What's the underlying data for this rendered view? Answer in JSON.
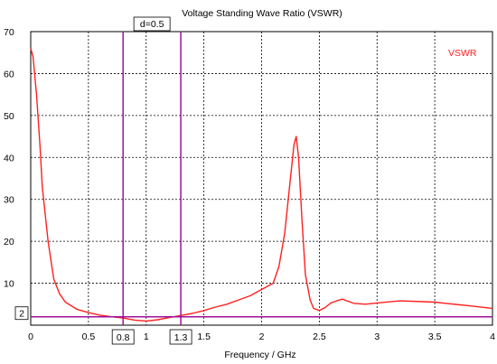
{
  "chart_data": {
    "type": "line",
    "title": "Voltage Standing Wave Ratio (VSWR)",
    "xlabel": "Frequency / GHz",
    "ylabel": "",
    "xlim": [
      0,
      4
    ],
    "ylim": [
      0,
      70
    ],
    "xticks": [
      "0",
      "0.5",
      "1",
      "1.5",
      "2",
      "2.5",
      "3",
      "3.5",
      "4"
    ],
    "yticks": [
      "10",
      "20",
      "30",
      "40",
      "50",
      "60",
      "70"
    ],
    "grid": true,
    "legend_position": "top-right",
    "colors": {
      "series": "#ff2020",
      "markers": "#a0129a",
      "grid": "#000000"
    },
    "series": [
      {
        "name": "VSWR",
        "x": [
          0,
          0.02,
          0.05,
          0.08,
          0.1,
          0.15,
          0.2,
          0.25,
          0.3,
          0.4,
          0.5,
          0.6,
          0.7,
          0.8,
          0.9,
          1.0,
          1.1,
          1.2,
          1.3,
          1.4,
          1.5,
          1.6,
          1.7,
          1.8,
          1.9,
          2.0,
          2.1,
          2.15,
          2.2,
          2.25,
          2.28,
          2.3,
          2.32,
          2.35,
          2.38,
          2.42,
          2.45,
          2.5,
          2.55,
          2.6,
          2.65,
          2.7,
          2.8,
          2.9,
          3.0,
          3.2,
          3.4,
          3.5,
          3.6,
          3.8,
          4.0
        ],
        "y": [
          66,
          64,
          55,
          43,
          33,
          20,
          11,
          7.5,
          5.5,
          3.8,
          3,
          2.4,
          2,
          1.7,
          1.2,
          1.0,
          1.3,
          1.8,
          2.3,
          2.8,
          3.5,
          4.3,
          5,
          6,
          7,
          8.5,
          10,
          14,
          22,
          35,
          43,
          45,
          40,
          25,
          12,
          6,
          4,
          3.5,
          4.2,
          5.3,
          5.8,
          6.2,
          5.2,
          5.0,
          5.3,
          5.8,
          5.6,
          5.5,
          5.2,
          4.6,
          4.0
        ]
      }
    ],
    "markers": [
      {
        "label": "0.8",
        "x": 0.8
      },
      {
        "label": "1.3",
        "x": 1.3
      }
    ],
    "delta_label": "d=0.5",
    "hline": {
      "label": "2",
      "y": 2
    }
  }
}
